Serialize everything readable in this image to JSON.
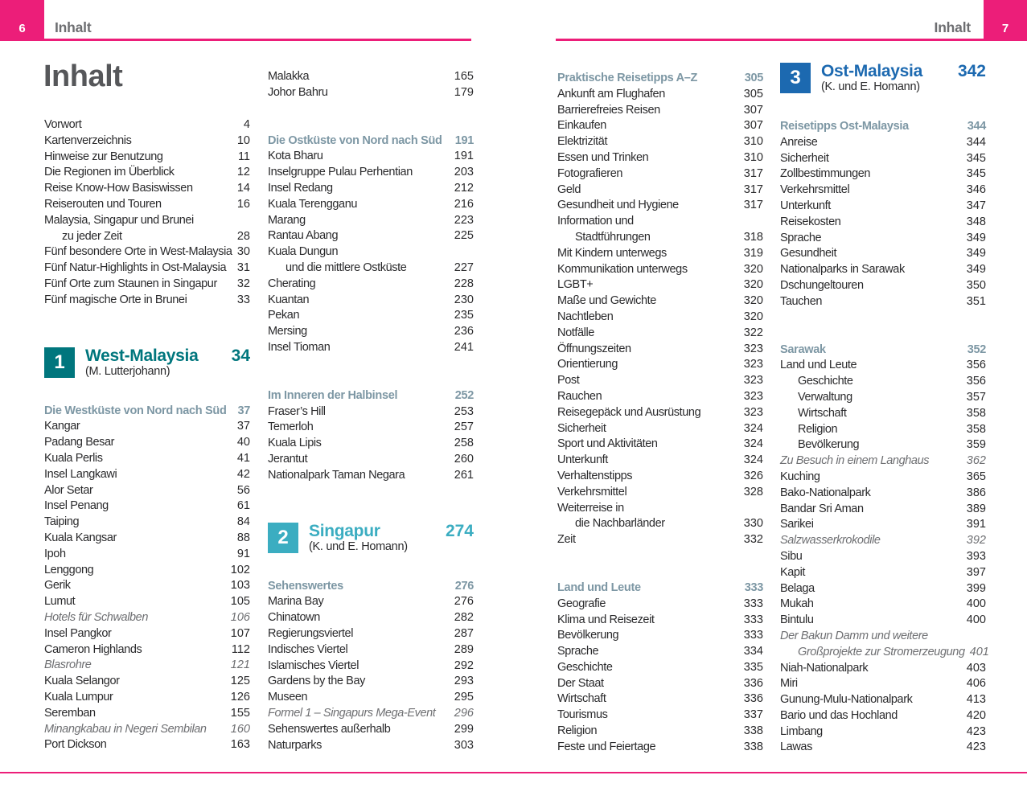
{
  "colors": {
    "accent_pink": "#EC1E79",
    "header_gray": "#6D6E71",
    "title_gray": "#56575A",
    "body_text": "#2A2A2C",
    "subsection_header": "#7D97A4",
    "italic_gray": "#6E6F72",
    "section1_teal": "#00767D",
    "section2_cyan": "#3BADC1",
    "section3_blue": "#1C69B0"
  },
  "left_page": {
    "page_number": "6",
    "header_label": "Inhalt",
    "page_title": "Inhalt"
  },
  "right_page": {
    "page_number": "7",
    "header_label": "Inhalt"
  },
  "columns": [
    {
      "id": "col1",
      "blocks": [
        {
          "type": "rows",
          "rows": [
            {
              "label": "Vorwort",
              "page": "4"
            },
            {
              "label": "Kartenverzeichnis",
              "page": "10"
            },
            {
              "label": "Hinweise zur Benutzung",
              "page": "11"
            },
            {
              "label": "Die Regionen im Überblick",
              "page": "12"
            },
            {
              "label": "Reise Know-How Basiswissen",
              "page": "14"
            },
            {
              "label": "Reiserouten und Touren",
              "page": "16"
            },
            {
              "label": "Malaysia, Singapur und Brunei",
              "page": ""
            },
            {
              "label": "zu jeder Zeit",
              "page": "28",
              "indent": true
            },
            {
              "label": "Fünf besondere Orte in West-Malaysia",
              "page": "30"
            },
            {
              "label": "Fünf Natur-Highlights in Ost-Malaysia",
              "page": "31"
            },
            {
              "label": "Fünf Orte zum Staunen in Singapur",
              "page": "32"
            },
            {
              "label": "Fünf magische Orte in Brunei",
              "page": "33"
            }
          ]
        },
        {
          "type": "section",
          "number": "1",
          "title": "West-Malaysia",
          "subtitle": "(M. Lutterjohann)",
          "page": "34",
          "color": "#00767D"
        },
        {
          "type": "header",
          "label": "Die Westküste von Nord nach Süd",
          "page": "37"
        },
        {
          "type": "rows",
          "rows": [
            {
              "label": "Kangar",
              "page": "37"
            },
            {
              "label": "Padang Besar",
              "page": "40"
            },
            {
              "label": "Kuala Perlis",
              "page": "41"
            },
            {
              "label": "Insel Langkawi",
              "page": "42"
            },
            {
              "label": "Alor Setar",
              "page": "56"
            },
            {
              "label": "Insel Penang",
              "page": "61"
            },
            {
              "label": "Taiping",
              "page": "84"
            },
            {
              "label": "Kuala Kangsar",
              "page": "88"
            },
            {
              "label": "Ipoh",
              "page": "91"
            },
            {
              "label": "Lenggong",
              "page": "102"
            },
            {
              "label": "Gerik",
              "page": "103"
            },
            {
              "label": "Lumut",
              "page": "105"
            },
            {
              "label": "Hotels für Schwalben",
              "page": "106",
              "italic": true
            },
            {
              "label": "Insel Pangkor",
              "page": "107"
            },
            {
              "label": "Cameron Highlands",
              "page": "112"
            },
            {
              "label": "Blasrohre",
              "page": "121",
              "italic": true
            },
            {
              "label": "Kuala Selangor",
              "page": "125"
            },
            {
              "label": "Kuala Lumpur",
              "page": "126"
            },
            {
              "label": "Seremban",
              "page": "155"
            },
            {
              "label": "Minangkabau in Negeri Sembilan",
              "page": "160",
              "italic": true
            },
            {
              "label": "Port Dickson",
              "page": "163"
            }
          ]
        }
      ]
    },
    {
      "id": "col2",
      "blocks": [
        {
          "type": "rows",
          "rows": [
            {
              "label": "Malakka",
              "page": "165"
            },
            {
              "label": "Johor Bahru",
              "page": "179"
            }
          ]
        },
        {
          "type": "header",
          "label": "Die Ostküste von Nord nach Süd",
          "page": "191"
        },
        {
          "type": "rows",
          "rows": [
            {
              "label": "Kota Bharu",
              "page": "191"
            },
            {
              "label": "Inselgruppe Pulau Perhentian",
              "page": "203"
            },
            {
              "label": "Insel Redang",
              "page": "212"
            },
            {
              "label": "Kuala Terengganu",
              "page": "216"
            },
            {
              "label": "Marang",
              "page": "223"
            },
            {
              "label": "Rantau Abang",
              "page": "225"
            },
            {
              "label": "Kuala Dungun",
              "page": ""
            },
            {
              "label": "und die mittlere Ostküste",
              "page": "227",
              "indent": true
            },
            {
              "label": "Cherating",
              "page": "228"
            },
            {
              "label": "Kuantan",
              "page": "230"
            },
            {
              "label": "Pekan",
              "page": "235"
            },
            {
              "label": "Mersing",
              "page": "236"
            },
            {
              "label": "Insel Tioman",
              "page": "241"
            }
          ]
        },
        {
          "type": "header",
          "label": "Im Inneren der Halbinsel",
          "page": "252"
        },
        {
          "type": "rows",
          "rows": [
            {
              "label": "Fraser’s Hill",
              "page": "253"
            },
            {
              "label": "Temerloh",
              "page": "257"
            },
            {
              "label": "Kuala Lipis",
              "page": "258"
            },
            {
              "label": "Jerantut",
              "page": "260"
            },
            {
              "label": "Nationalpark Taman Negara",
              "page": "261"
            }
          ]
        },
        {
          "type": "section",
          "number": "2",
          "title": "Singapur",
          "subtitle": "(K. und E. Homann)",
          "page": "274",
          "color": "#3BADC1"
        },
        {
          "type": "header",
          "label": "Sehenswertes",
          "page": "276"
        },
        {
          "type": "rows",
          "rows": [
            {
              "label": "Marina Bay",
              "page": "276"
            },
            {
              "label": "Chinatown",
              "page": "282"
            },
            {
              "label": "Regierungsviertel",
              "page": "287"
            },
            {
              "label": "Indisches Viertel",
              "page": "289"
            },
            {
              "label": "Islamisches Viertel",
              "page": "292"
            },
            {
              "label": "Gardens by the Bay",
              "page": "293"
            },
            {
              "label": "Museen",
              "page": "295"
            },
            {
              "label": "Formel 1 – Singapurs Mega-Event",
              "page": "296",
              "italic": true
            },
            {
              "label": "Sehenswertes außerhalb",
              "page": "299"
            },
            {
              "label": "Naturparks",
              "page": "303"
            }
          ]
        }
      ]
    },
    {
      "id": "col3",
      "blocks": [
        {
          "type": "header",
          "label": "Praktische Reisetipps A–Z",
          "page": "305"
        },
        {
          "type": "rows",
          "rows": [
            {
              "label": "Ankunft am Flughafen",
              "page": "305"
            },
            {
              "label": "Barrierefreies Reisen",
              "page": "307"
            },
            {
              "label": "Einkaufen",
              "page": "307"
            },
            {
              "label": "Elektrizität",
              "page": "310"
            },
            {
              "label": "Essen und Trinken",
              "page": "310"
            },
            {
              "label": "Fotografieren",
              "page": "317"
            },
            {
              "label": "Geld",
              "page": "317"
            },
            {
              "label": "Gesundheit und Hygiene",
              "page": "317"
            },
            {
              "label": "Information und",
              "page": ""
            },
            {
              "label": "Stadtführungen",
              "page": "318",
              "indent": true
            },
            {
              "label": "Mit Kindern unterwegs",
              "page": "319"
            },
            {
              "label": "Kommunikation unterwegs",
              "page": "320"
            },
            {
              "label": "LGBT+",
              "page": "320"
            },
            {
              "label": "Maße und Gewichte",
              "page": "320"
            },
            {
              "label": "Nachtleben",
              "page": "320"
            },
            {
              "label": "Notfälle",
              "page": "322"
            },
            {
              "label": "Öffnungszeiten",
              "page": "323"
            },
            {
              "label": "Orientierung",
              "page": "323"
            },
            {
              "label": "Post",
              "page": "323"
            },
            {
              "label": "Rauchen",
              "page": "323"
            },
            {
              "label": "Reisegepäck und Ausrüstung",
              "page": "323"
            },
            {
              "label": "Sicherheit",
              "page": "324"
            },
            {
              "label": "Sport und Aktivitäten",
              "page": "324"
            },
            {
              "label": "Unterkunft",
              "page": "324"
            },
            {
              "label": "Verhaltenstipps",
              "page": "326"
            },
            {
              "label": "Verkehrsmittel",
              "page": "328"
            },
            {
              "label": "Weiterreise in",
              "page": ""
            },
            {
              "label": "die Nachbarländer",
              "page": "330",
              "indent": true
            },
            {
              "label": "Zeit",
              "page": "332"
            }
          ]
        },
        {
          "type": "header",
          "label": "Land und Leute",
          "page": "333"
        },
        {
          "type": "rows",
          "rows": [
            {
              "label": "Geografie",
              "page": "333"
            },
            {
              "label": "Klima und Reisezeit",
              "page": "333"
            },
            {
              "label": "Bevölkerung",
              "page": "333"
            },
            {
              "label": "Sprache",
              "page": "334"
            },
            {
              "label": "Geschichte",
              "page": "335"
            },
            {
              "label": "Der Staat",
              "page": "336"
            },
            {
              "label": "Wirtschaft",
              "page": "336"
            },
            {
              "label": "Tourismus",
              "page": "337"
            },
            {
              "label": "Religion",
              "page": "338"
            },
            {
              "label": "Feste und Feiertage",
              "page": "338"
            }
          ]
        }
      ]
    },
    {
      "id": "col4",
      "blocks": [
        {
          "type": "section",
          "number": "3",
          "title": "Ost-Malaysia",
          "subtitle": "(K. und E. Homann)",
          "page": "342",
          "color": "#1C69B0"
        },
        {
          "type": "header",
          "label": "Reisetipps Ost-Malaysia",
          "page": "344"
        },
        {
          "type": "rows",
          "rows": [
            {
              "label": "Anreise",
              "page": "344"
            },
            {
              "label": "Sicherheit",
              "page": "345"
            },
            {
              "label": "Zollbestimmungen",
              "page": "345"
            },
            {
              "label": "Verkehrsmittel",
              "page": "346"
            },
            {
              "label": "Unterkunft",
              "page": "347"
            },
            {
              "label": "Reisekosten",
              "page": "348"
            },
            {
              "label": "Sprache",
              "page": "349"
            },
            {
              "label": "Gesundheit",
              "page": "349"
            },
            {
              "label": "Nationalparks in Sarawak",
              "page": "349"
            },
            {
              "label": "Dschungeltouren",
              "page": "350"
            },
            {
              "label": "Tauchen",
              "page": "351"
            }
          ]
        },
        {
          "type": "header",
          "label": "Sarawak",
          "page": "352"
        },
        {
          "type": "rows",
          "rows": [
            {
              "label": "Land und Leute",
              "page": "356"
            },
            {
              "label": "Geschichte",
              "page": "356",
              "indent": true
            },
            {
              "label": "Verwaltung",
              "page": "357",
              "indent": true
            },
            {
              "label": "Wirtschaft",
              "page": "358",
              "indent": true
            },
            {
              "label": "Religion",
              "page": "358",
              "indent": true
            },
            {
              "label": "Bevölkerung",
              "page": "359",
              "indent": true
            },
            {
              "label": "Zu Besuch in einem Langhaus",
              "page": "362",
              "italic": true
            },
            {
              "label": "Kuching",
              "page": "365"
            },
            {
              "label": "Bako-Nationalpark",
              "page": "386"
            },
            {
              "label": "Bandar Sri Aman",
              "page": "389"
            },
            {
              "label": "Sarikei",
              "page": "391"
            },
            {
              "label": "Salzwasserkrokodile",
              "page": "392",
              "italic": true
            },
            {
              "label": "Sibu",
              "page": "393"
            },
            {
              "label": "Kapit",
              "page": "397"
            },
            {
              "label": "Belaga",
              "page": "399"
            },
            {
              "label": "Mukah",
              "page": "400"
            },
            {
              "label": "Bintulu",
              "page": "400"
            },
            {
              "label": "Der Bakun Damm und weitere",
              "page": "",
              "italic": true
            },
            {
              "label": "Großprojekte zur Stromerzeugung",
              "page": "401",
              "italic": true,
              "indent": true
            },
            {
              "label": "Niah-Nationalpark",
              "page": "403"
            },
            {
              "label": "Miri",
              "page": "406"
            },
            {
              "label": "Gunung-Mulu-Nationalpark",
              "page": "413"
            },
            {
              "label": "Bario und das Hochland",
              "page": "420"
            },
            {
              "label": "Limbang",
              "page": "423"
            },
            {
              "label": "Lawas",
              "page": "423"
            }
          ]
        }
      ]
    }
  ]
}
